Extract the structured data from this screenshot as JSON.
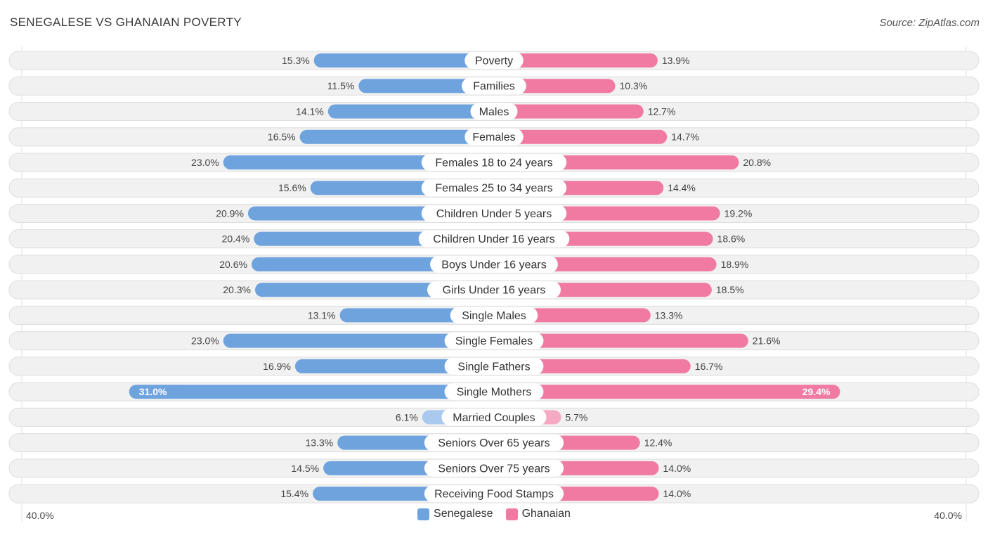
{
  "title": "SENEGALESE VS GHANAIAN POVERTY",
  "source": "Source: ZipAtlas.com",
  "colors": {
    "senegalese": "#6fa3de",
    "ghanaian": "#f07aa2",
    "senegalese_light": "#a9c9ef",
    "ghanaian_light": "#f5a9c3"
  },
  "legend": {
    "left_label": "Senegalese",
    "right_label": "Ghanaian"
  },
  "axis": {
    "left_label": "40.0%",
    "right_label": "40.0%"
  },
  "chart_data": {
    "type": "bar",
    "orientation": "horizontal-diverging",
    "title": "SENEGALESE VS GHANAIAN POVERTY",
    "xlim": [
      0,
      40
    ],
    "categories": [
      "Poverty",
      "Families",
      "Males",
      "Females",
      "Females 18 to 24 years",
      "Females 25 to 34 years",
      "Children Under 5 years",
      "Children Under 16 years",
      "Boys Under 16 years",
      "Girls Under 16 years",
      "Single Males",
      "Single Females",
      "Single Fathers",
      "Single Mothers",
      "Married Couples",
      "Seniors Over 65 years",
      "Seniors Over 75 years",
      "Receiving Food Stamps"
    ],
    "series": [
      {
        "name": "Senegalese",
        "values": [
          15.3,
          11.5,
          14.1,
          16.5,
          23.0,
          15.6,
          20.9,
          20.4,
          20.6,
          20.3,
          13.1,
          23.0,
          16.9,
          31.0,
          6.1,
          13.3,
          14.5,
          15.4
        ],
        "labels": [
          "15.3%",
          "11.5%",
          "14.1%",
          "16.5%",
          "23.0%",
          "15.6%",
          "20.9%",
          "20.4%",
          "20.6%",
          "20.3%",
          "13.1%",
          "23.0%",
          "16.9%",
          "31.0%",
          "6.1%",
          "13.3%",
          "14.5%",
          "15.4%"
        ]
      },
      {
        "name": "Ghanaian",
        "values": [
          13.9,
          10.3,
          12.7,
          14.7,
          20.8,
          14.4,
          19.2,
          18.6,
          18.9,
          18.5,
          13.3,
          21.6,
          16.7,
          29.4,
          5.7,
          12.4,
          14.0,
          14.0
        ],
        "labels": [
          "13.9%",
          "10.3%",
          "12.7%",
          "14.7%",
          "20.8%",
          "14.4%",
          "19.2%",
          "18.6%",
          "18.9%",
          "18.5%",
          "13.3%",
          "21.6%",
          "16.7%",
          "29.4%",
          "5.7%",
          "12.4%",
          "14.0%",
          "14.0%"
        ]
      }
    ]
  }
}
